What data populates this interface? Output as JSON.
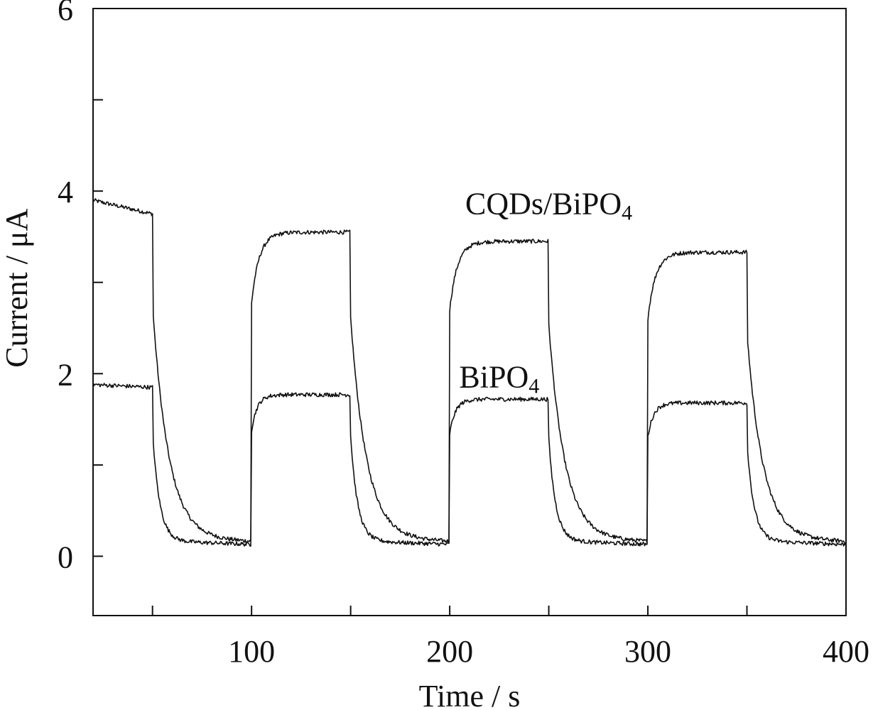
{
  "chart_data": {
    "type": "line",
    "title": "",
    "xlabel": "Time / s",
    "ylabel": "Current / μA",
    "xlim": [
      20,
      400
    ],
    "ylim": [
      -0.65,
      6
    ],
    "grid": false,
    "legend": "none (inline labels)",
    "x_ticks": [
      100,
      200,
      300,
      400
    ],
    "x_minor_ticks": [
      50,
      150,
      250,
      350
    ],
    "y_ticks": [
      0,
      2,
      4,
      6
    ],
    "y_minor_ticks": [
      1,
      3,
      5
    ],
    "series": [
      {
        "name": "CQDs/BiPO4",
        "label": {
          "main": "CQDs/BiPO",
          "sub": "4"
        },
        "label_anchor": [
          250,
          3.75
        ],
        "profile": {
          "initial_on": [
            3.9,
            3.75
          ],
          "on_windows": [
            [
              100,
              150,
              3.55
            ],
            [
              200,
              250,
              3.45
            ],
            [
              300,
              350,
              3.33
            ]
          ],
          "off_windows": [
            [
              50,
              100
            ],
            [
              150,
              200
            ],
            [
              250,
              300
            ],
            [
              350,
              400
            ]
          ],
          "off_baseline": 0.2,
          "decay_tau": 8,
          "rise_tau": 4
        }
      },
      {
        "name": "BiPO4",
        "label": {
          "main": "BiPO",
          "sub": "4"
        },
        "label_anchor": [
          225,
          1.85
        ],
        "profile": {
          "initial_on": [
            1.88,
            1.85
          ],
          "on_windows": [
            [
              100,
              150,
              1.77
            ],
            [
              200,
              250,
              1.72
            ],
            [
              300,
              350,
              1.68
            ]
          ],
          "off_windows": [
            [
              50,
              100
            ],
            [
              150,
              200
            ],
            [
              250,
              300
            ],
            [
              350,
              400
            ]
          ],
          "off_baseline": 0.17,
          "decay_tau": 3.5,
          "rise_tau": 3
        }
      }
    ]
  }
}
